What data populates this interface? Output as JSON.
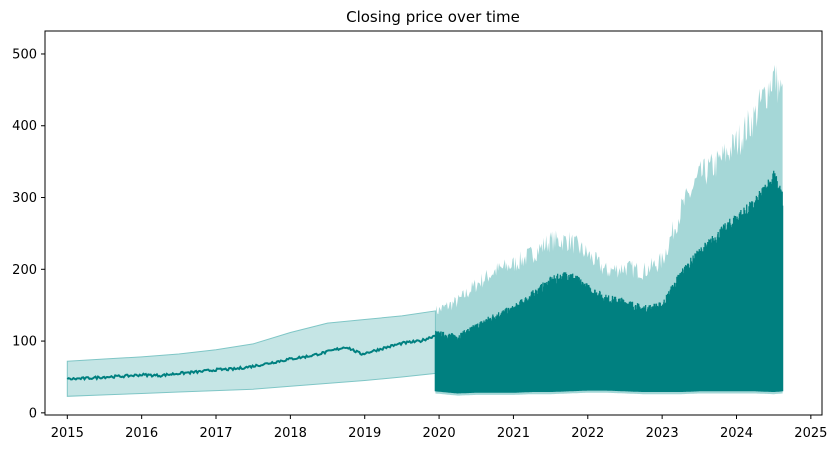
{
  "chart_data": {
    "type": "line",
    "title": "Closing price over time",
    "xlabel": "",
    "ylabel": "",
    "xlim": [
      2014.7,
      2025.15
    ],
    "ylim": [
      -3,
      532
    ],
    "x_ticks": [
      "2015",
      "2016",
      "2017",
      "2018",
      "2019",
      "2020",
      "2021",
      "2022",
      "2023",
      "2024",
      "2025"
    ],
    "y_ticks": [
      "0",
      "100",
      "200",
      "300",
      "400",
      "500"
    ],
    "grid": false,
    "legend": "none",
    "colors": {
      "line": "#008080",
      "band": "#7fc6c6"
    },
    "series": [
      {
        "style": "line",
        "x": [
          2015.0,
          2015.25,
          2015.5,
          2015.75,
          2016.0,
          2016.25,
          2016.5,
          2016.75,
          2017.0,
          2017.25,
          2017.5,
          2017.75,
          2018.0,
          2018.25,
          2018.5,
          2018.75,
          2018.95,
          2019.0,
          2019.25,
          2019.5,
          2019.75,
          2019.95
        ],
        "y": [
          47,
          48,
          50,
          51,
          53,
          52,
          55,
          57,
          60,
          61,
          65,
          70,
          75,
          79,
          85,
          92,
          82,
          83,
          90,
          97,
          100,
          108
        ]
      },
      {
        "style": "band",
        "x": [
          2015.0,
          2015.5,
          2016.0,
          2016.5,
          2017.0,
          2017.5,
          2018.0,
          2018.5,
          2019.0,
          2019.5,
          2019.95
        ],
        "y_low": [
          23,
          25,
          27,
          29,
          31,
          33,
          37,
          41,
          45,
          50,
          55
        ],
        "y_high": [
          72,
          75,
          78,
          82,
          88,
          96,
          112,
          125,
          130,
          135,
          142
        ]
      },
      {
        "style": "dense-range",
        "x": [
          2019.95,
          2020.25,
          2020.5,
          2020.75,
          2021.0,
          2021.25,
          2021.5,
          2021.75,
          2022.0,
          2022.25,
          2022.5,
          2022.75,
          2023.0,
          2023.25,
          2023.5,
          2023.75,
          2024.0,
          2024.25,
          2024.5,
          2024.62
        ],
        "y_low": [
          30,
          27,
          28,
          28,
          28,
          29,
          29,
          30,
          31,
          31,
          30,
          29,
          29,
          29,
          30,
          30,
          30,
          30,
          29,
          30
        ],
        "y_high": [
          115,
          110,
          125,
          140,
          150,
          170,
          190,
          200,
          180,
          165,
          160,
          150,
          155,
          200,
          230,
          255,
          280,
          300,
          340,
          310
        ],
        "band_high": [
          150,
          165,
          190,
          210,
          220,
          235,
          255,
          255,
          235,
          210,
          215,
          210,
          225,
          300,
          350,
          370,
          400,
          440,
          500,
          470
        ]
      }
    ]
  }
}
